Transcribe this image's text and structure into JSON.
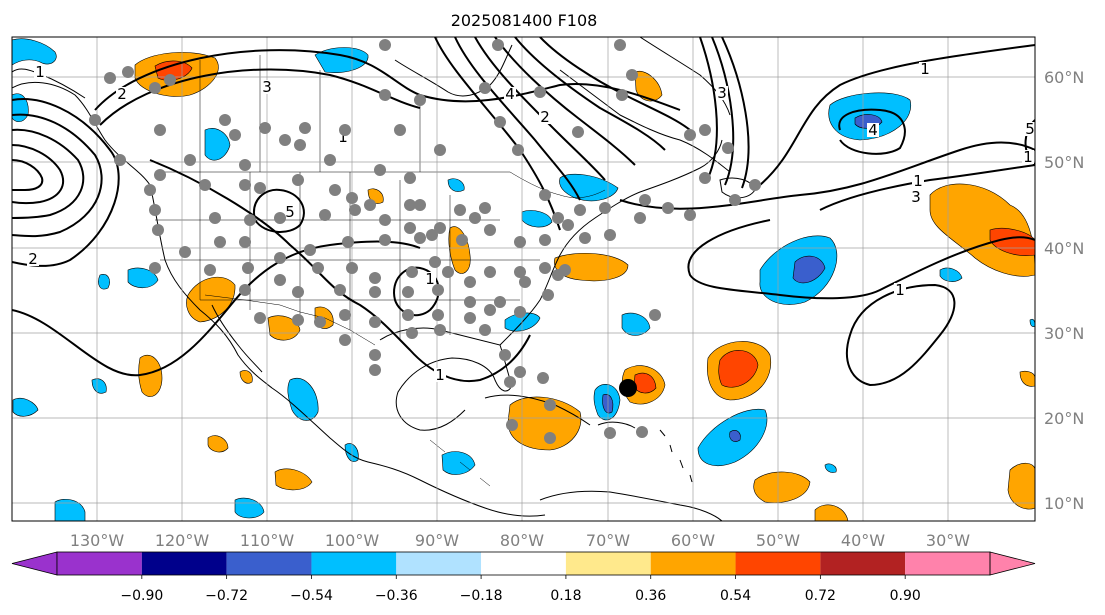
{
  "title": "2025081400 F108",
  "map": {
    "lon_labels": [
      "130°W",
      "120°W",
      "110°W",
      "100°W",
      "90°W",
      "80°W",
      "70°W",
      "60°W",
      "50°W",
      "40°W",
      "30°W"
    ],
    "lat_labels": [
      "60°N",
      "50°N",
      "40°N",
      "30°N",
      "20°N",
      "10°N"
    ],
    "lon_range": [
      -140,
      -20
    ],
    "lat_range": [
      8,
      65
    ],
    "grid": true,
    "grid_color": "#a0a0a0",
    "contour_labels": [
      "1",
      "2",
      "3",
      "4",
      "5",
      "1",
      "2",
      "1",
      "1",
      "2",
      "3",
      "1",
      "1",
      "3",
      "4",
      "5",
      "1",
      "1"
    ],
    "storm_marker_color": "#000000",
    "station_marker_color": "#808080"
  },
  "colorbar": {
    "ticks": [
      "−0.90",
      "−0.72",
      "−0.54",
      "−0.36",
      "−0.18",
      "0.18",
      "0.36",
      "0.54",
      "0.72",
      "0.90"
    ],
    "colors": [
      "#9a32cd",
      "#00008b",
      "#3a5fcd",
      "#00bfff",
      "#b0e2ff",
      "#ffffff",
      "#ffe98c",
      "#ffa500",
      "#ff4500",
      "#b22222",
      "#ff82ab"
    ]
  }
}
